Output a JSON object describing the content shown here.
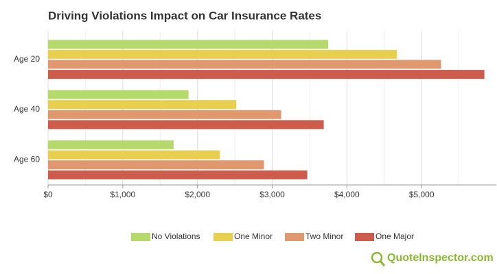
{
  "chart_data": {
    "type": "bar",
    "orientation": "horizontal",
    "title": "Driving Violations Impact on Car Insurance Rates",
    "categories": [
      "Age 20",
      "Age 40",
      "Age 60"
    ],
    "series": [
      {
        "name": "No Violations",
        "color": "#b5d96a",
        "values": [
          3750,
          1880,
          1680
        ]
      },
      {
        "name": "One Minor",
        "color": "#e8cf4f",
        "values": [
          4670,
          2520,
          2300
        ]
      },
      {
        "name": "Two Minor",
        "color": "#e0996e",
        "values": [
          5260,
          3120,
          2890
        ]
      },
      {
        "name": "One Major",
        "color": "#cd5c4c",
        "values": [
          5840,
          3690,
          3470
        ]
      }
    ],
    "xlim": [
      0,
      6000
    ],
    "xticks": [
      {
        "value": 0,
        "label": "$0"
      },
      {
        "value": 1000,
        "label": "$1,000"
      },
      {
        "value": 2000,
        "label": "$2,000"
      },
      {
        "value": 3000,
        "label": "$3,000"
      },
      {
        "value": 4000,
        "label": "$4,000"
      },
      {
        "value": 5000,
        "label": "$5,000"
      }
    ],
    "xminorticks": [
      500,
      1500,
      2500,
      3500,
      4500,
      5500
    ],
    "grid": true,
    "legend": "bottom",
    "watermark": "QuoteInspector.com"
  }
}
